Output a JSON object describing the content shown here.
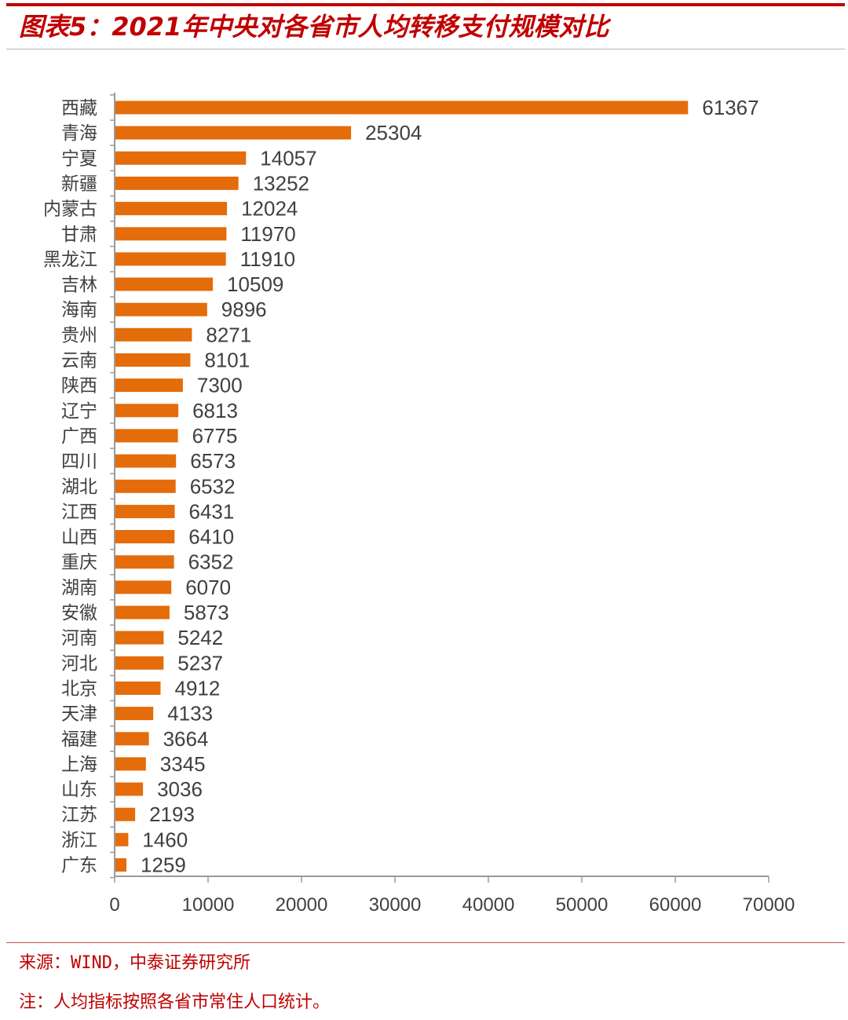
{
  "title": "图表5：2021年中央对各省市人均转移支付规模对比",
  "colors": {
    "bar": "#E46C0A",
    "title": "#C00000",
    "rule": "#C00000",
    "text": "#404040",
    "axis": "#9a9a9a"
  },
  "chart_data": {
    "type": "bar",
    "orientation": "horizontal",
    "title": "",
    "xlabel": "",
    "ylabel": "",
    "xlim": [
      0,
      70000
    ],
    "xticks": [
      "0",
      "10000",
      "20000",
      "30000",
      "40000",
      "50000",
      "60000",
      "70000"
    ],
    "grid": false,
    "legend": "none",
    "categories": [
      "西藏",
      "青海",
      "宁夏",
      "新疆",
      "内蒙古",
      "甘肃",
      "黑龙江",
      "吉林",
      "海南",
      "贵州",
      "云南",
      "陕西",
      "辽宁",
      "广西",
      "四川",
      "湖北",
      "江西",
      "山西",
      "重庆",
      "湖南",
      "安徽",
      "河南",
      "河北",
      "北京",
      "天津",
      "福建",
      "上海",
      "山东",
      "江苏",
      "浙江",
      "广东"
    ],
    "values": [
      61367,
      25304,
      14057,
      13252,
      12024,
      11970,
      11910,
      10509,
      9896,
      8271,
      8101,
      7300,
      6813,
      6775,
      6573,
      6532,
      6431,
      6410,
      6352,
      6070,
      5873,
      5242,
      5237,
      4912,
      4133,
      3664,
      3345,
      3036,
      2193,
      1460,
      1259
    ]
  },
  "footer": {
    "source": "来源：WIND，中泰证券研究所",
    "note": "注：人均指标按照各省市常住人口统计。"
  }
}
